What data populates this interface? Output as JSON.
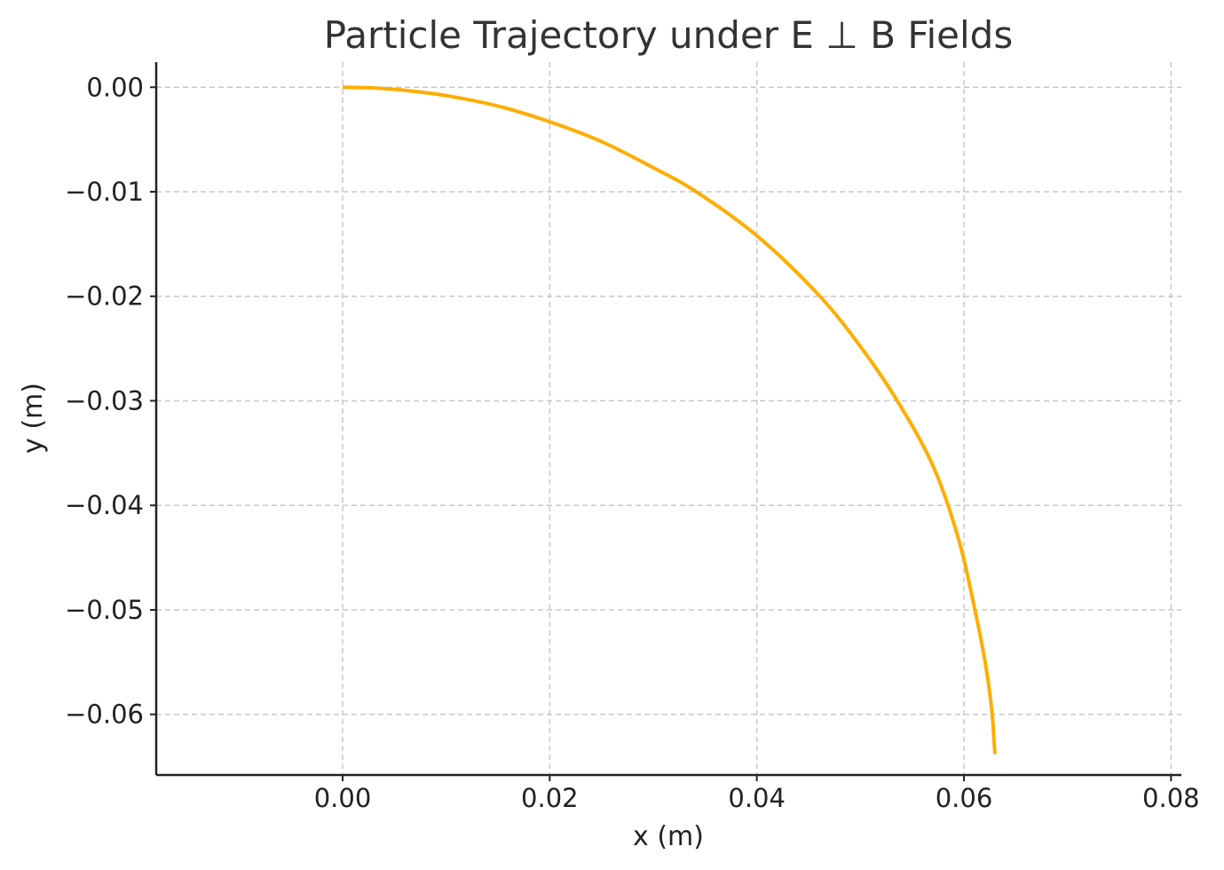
{
  "chart_data": {
    "type": "line",
    "title": "Particle Trajectory under E ⊥ B Fields",
    "xlabel": "x (m)",
    "ylabel": "y (m)",
    "xlim": [
      -0.018,
      0.081
    ],
    "ylim": [
      -0.0658,
      0.0024
    ],
    "xticks": [
      0.0,
      0.02,
      0.04,
      0.06,
      0.08
    ],
    "yticks": [
      0.0,
      -0.01,
      -0.02,
      -0.03,
      -0.04,
      -0.05,
      -0.06
    ],
    "xtick_labels": [
      "0.00",
      "0.02",
      "0.04",
      "0.06",
      "0.08"
    ],
    "ytick_labels": [
      "0.00",
      "−0.01",
      "−0.02",
      "−0.03",
      "−0.04",
      "−0.05",
      "−0.06"
    ],
    "grid": true,
    "series": [
      {
        "color": "#ffad00",
        "x": [
          0.0,
          0.003,
          0.006,
          0.01,
          0.015,
          0.02,
          0.025,
          0.03,
          0.034,
          0.04,
          0.046,
          0.05,
          0.0535,
          0.057,
          0.0595,
          0.0611,
          0.0621,
          0.0627,
          0.0629,
          0.063
        ],
        "y": [
          0.0,
          -7e-05,
          -0.00029,
          -0.0008,
          -0.0018,
          -0.0033,
          -0.0052,
          -0.0077,
          -0.0099,
          -0.0142,
          -0.0199,
          -0.0248,
          -0.0299,
          -0.0362,
          -0.0433,
          -0.0502,
          -0.0553,
          -0.0597,
          -0.0625,
          -0.0638
        ]
      }
    ]
  }
}
